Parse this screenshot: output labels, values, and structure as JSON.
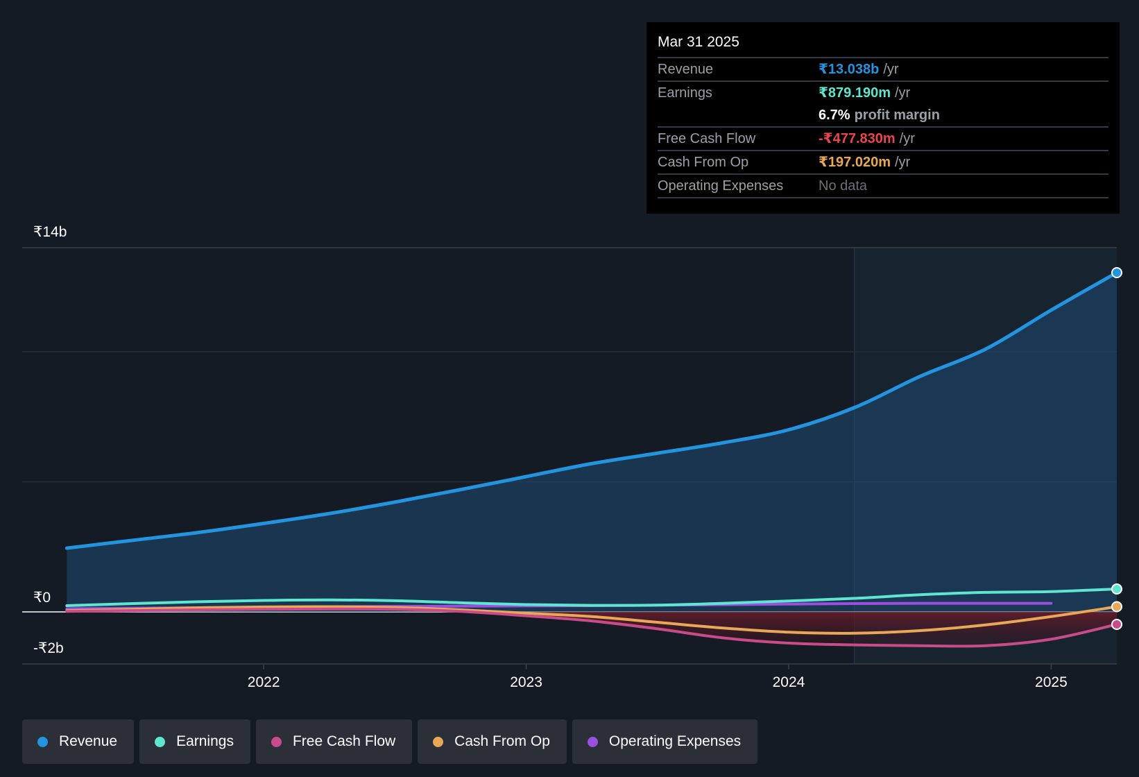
{
  "tooltip": {
    "date": "Mar 31 2025",
    "revenue_label": "Revenue",
    "revenue_value": "₹13.038b",
    "unit": "/yr",
    "earnings_label": "Earnings",
    "earnings_value": "₹879.190m",
    "margin_value": "6.7%",
    "margin_label": "profit margin",
    "fcf_label": "Free Cash Flow",
    "fcf_value": "-₹477.830m",
    "cfo_label": "Cash From Op",
    "cfo_value": "₹197.020m",
    "opex_label": "Operating Expenses",
    "opex_value": "No data"
  },
  "legend": [
    {
      "label": "Revenue",
      "color": "#2394df"
    },
    {
      "label": "Earnings",
      "color": "#5ee6d0"
    },
    {
      "label": "Free Cash Flow",
      "color": "#c94b8a"
    },
    {
      "label": "Cash From Op",
      "color": "#e8a857"
    },
    {
      "label": "Operating Expenses",
      "color": "#9b4fe0"
    }
  ],
  "chart_data": {
    "type": "line",
    "title": "",
    "y_tick_labels": [
      "₹14b",
      "₹0",
      "-₹2b"
    ],
    "x_tick_labels": [
      "2022",
      "2023",
      "2024",
      "2025"
    ],
    "ylim": [
      -2,
      14
    ],
    "xlim": [
      2021.08,
      2025.25
    ],
    "forecast_start": 2024.25,
    "series": [
      {
        "name": "Revenue",
        "color": "#2394df",
        "x": [
          2021.25,
          2021.5,
          2021.75,
          2022.0,
          2022.25,
          2022.5,
          2022.75,
          2023.0,
          2023.25,
          2023.5,
          2023.75,
          2024.0,
          2024.25,
          2024.5,
          2024.75,
          2025.0,
          2025.25
        ],
        "y": [
          2.45,
          2.75,
          3.05,
          3.4,
          3.78,
          4.22,
          4.7,
          5.2,
          5.7,
          6.1,
          6.5,
          7.0,
          7.85,
          9.05,
          10.1,
          11.6,
          13.04
        ]
      },
      {
        "name": "Earnings",
        "color": "#5ee6d0",
        "x": [
          2021.25,
          2021.5,
          2021.75,
          2022.0,
          2022.25,
          2022.5,
          2022.75,
          2023.0,
          2023.25,
          2023.5,
          2023.75,
          2024.0,
          2024.25,
          2024.5,
          2024.75,
          2025.0,
          2025.25
        ],
        "y": [
          0.24,
          0.32,
          0.39,
          0.44,
          0.46,
          0.43,
          0.35,
          0.28,
          0.25,
          0.26,
          0.33,
          0.42,
          0.52,
          0.66,
          0.75,
          0.78,
          0.88
        ]
      },
      {
        "name": "Free Cash Flow",
        "color": "#c94b8a",
        "x": [
          2021.25,
          2021.5,
          2021.75,
          2022.0,
          2022.25,
          2022.5,
          2022.75,
          2023.0,
          2023.25,
          2023.5,
          2023.75,
          2024.0,
          2024.25,
          2024.5,
          2024.75,
          2025.0,
          2025.25
        ],
        "y": [
          0.02,
          0.05,
          0.08,
          0.1,
          0.11,
          0.1,
          0.02,
          -0.15,
          -0.35,
          -0.65,
          -1.0,
          -1.2,
          -1.27,
          -1.3,
          -1.3,
          -1.05,
          -0.48
        ]
      },
      {
        "name": "Cash From Op",
        "color": "#e8a857",
        "x": [
          2021.25,
          2021.5,
          2021.75,
          2022.0,
          2022.25,
          2022.5,
          2022.75,
          2023.0,
          2023.25,
          2023.5,
          2023.75,
          2024.0,
          2024.25,
          2024.5,
          2024.75,
          2025.0,
          2025.25
        ],
        "y": [
          0.05,
          0.1,
          0.16,
          0.19,
          0.2,
          0.17,
          0.08,
          -0.05,
          -0.18,
          -0.4,
          -0.62,
          -0.78,
          -0.82,
          -0.72,
          -0.5,
          -0.18,
          0.2
        ]
      },
      {
        "name": "Operating Expenses",
        "color": "#9b4fe0",
        "x": [
          2021.25,
          2021.5,
          2021.75,
          2022.0,
          2022.25,
          2022.5,
          2022.75,
          2023.0,
          2023.25,
          2023.5,
          2023.75,
          2024.0,
          2024.25,
          2024.5,
          2024.75,
          2025.0
        ],
        "y": [
          0.12,
          0.14,
          0.16,
          0.18,
          0.2,
          0.21,
          0.22,
          0.23,
          0.24,
          0.26,
          0.28,
          0.3,
          0.32,
          0.33,
          0.33,
          0.33
        ]
      }
    ]
  }
}
